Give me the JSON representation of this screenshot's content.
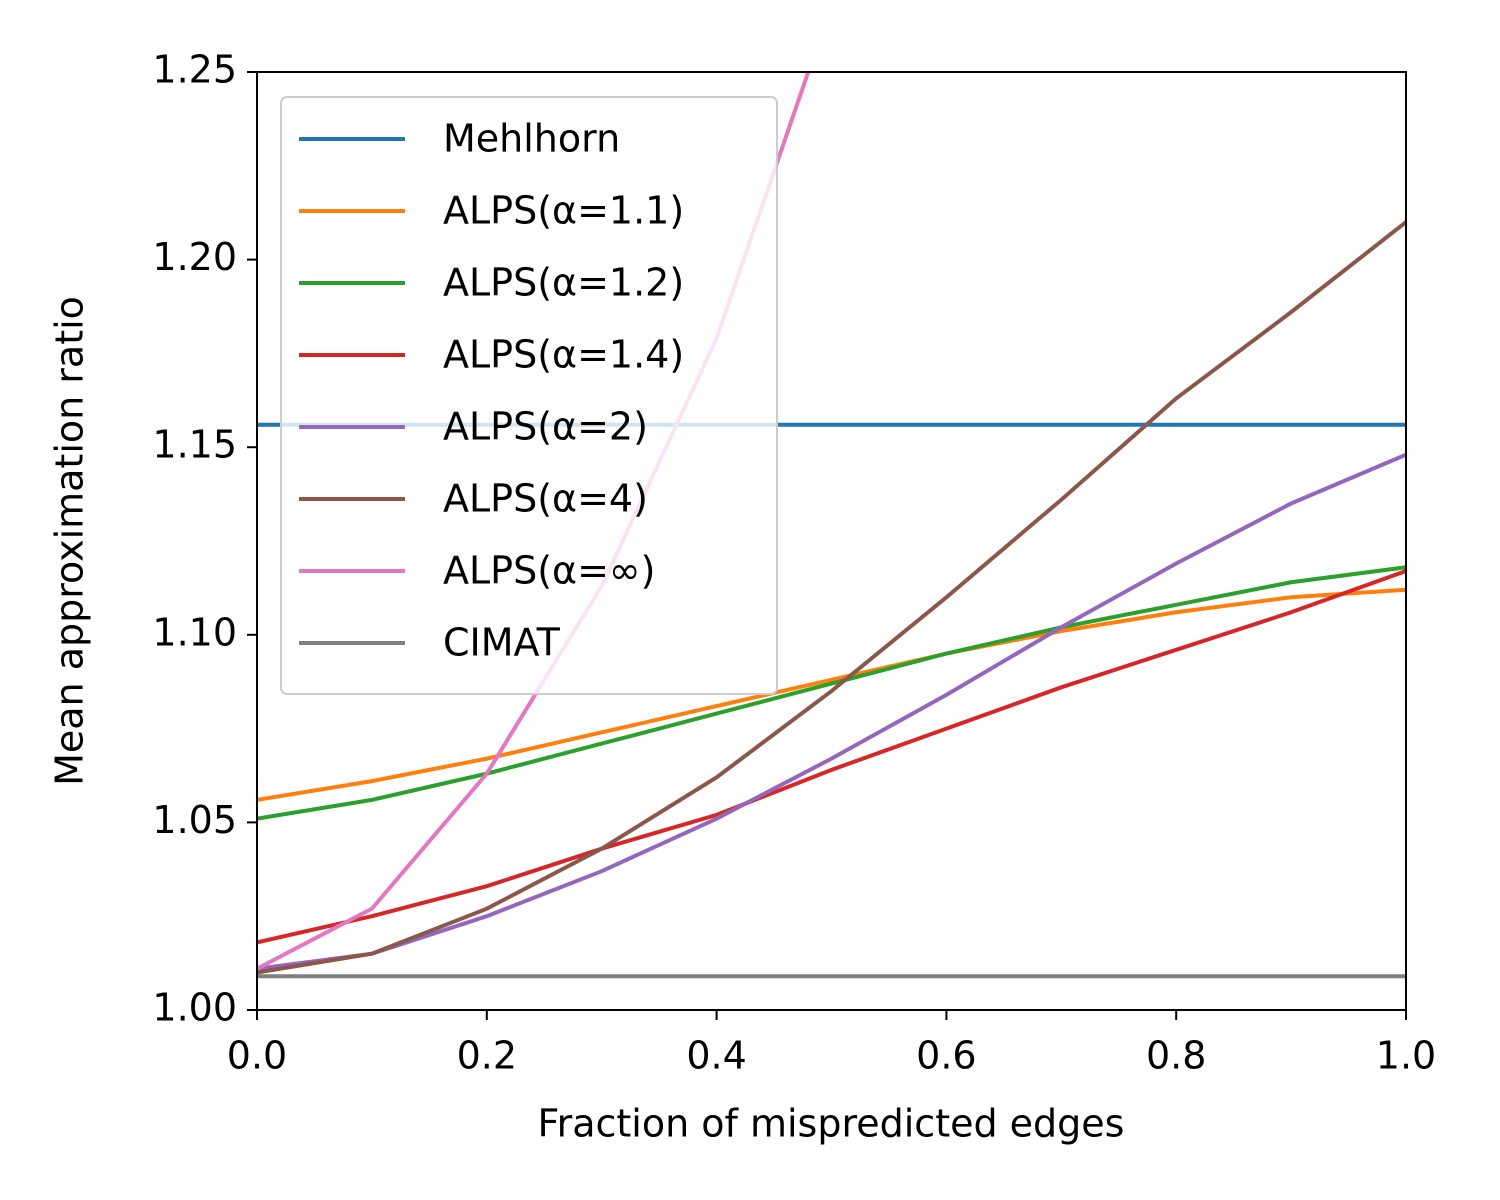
{
  "chart_data": {
    "type": "line",
    "xlabel": "Fraction of mispredicted edges",
    "ylabel": "Mean approximation ratio",
    "x": [
      0,
      0.1,
      0.2,
      0.3,
      0.4,
      0.5,
      0.6,
      0.7,
      0.8,
      0.9,
      1
    ],
    "series": [
      {
        "name": "Mehlhorn",
        "color": "#1f77b4",
        "values": [
          1.156,
          1.156,
          1.156,
          1.156,
          1.156,
          1.156,
          1.156,
          1.156,
          1.156,
          1.156,
          1.156
        ]
      },
      {
        "name": "ALPS(α=1.1)",
        "color": "#ff7f0e",
        "values": [
          1.056,
          1.061,
          1.067,
          1.074,
          1.081,
          1.088,
          1.095,
          1.101,
          1.106,
          1.11,
          1.112
        ]
      },
      {
        "name": "ALPS(α=1.2)",
        "color": "#2ca02c",
        "values": [
          1.051,
          1.056,
          1.063,
          1.071,
          1.079,
          1.087,
          1.095,
          1.102,
          1.108,
          1.114,
          1.118
        ]
      },
      {
        "name": "ALPS(α=1.4)",
        "color": "#d62728",
        "values": [
          1.018,
          1.025,
          1.033,
          1.043,
          1.052,
          1.064,
          1.075,
          1.086,
          1.096,
          1.106,
          1.117
        ]
      },
      {
        "name": "ALPS(α=2)",
        "color": "#9467bd",
        "values": [
          1.011,
          1.015,
          1.025,
          1.037,
          1.051,
          1.067,
          1.084,
          1.102,
          1.119,
          1.135,
          1.148
        ]
      },
      {
        "name": "ALPS(α=4)",
        "color": "#8c564b",
        "values": [
          1.01,
          1.015,
          1.027,
          1.043,
          1.062,
          1.085,
          1.11,
          1.136,
          1.163,
          1.186,
          1.21
        ]
      },
      {
        "name": "ALPS(α=∞)",
        "color": "#e377c2",
        "values": [
          1.011,
          1.027,
          1.063,
          1.113,
          1.179,
          1.268,
          null,
          null,
          null,
          null,
          null
        ]
      },
      {
        "name": "CIMAT",
        "color": "#7f7f7f",
        "values": [
          1.009,
          1.009,
          1.009,
          1.009,
          1.009,
          1.009,
          1.009,
          1.009,
          1.009,
          1.009,
          1.009
        ]
      }
    ],
    "xlim": [
      0,
      1
    ],
    "ylim": [
      1,
      1.25
    ],
    "xticks": [
      {
        "value": 0,
        "label": "0.0"
      },
      0.2,
      0.4,
      0.6,
      0.8,
      {
        "value": 1,
        "label": "1.0"
      }
    ],
    "yticks": [
      {
        "value": 1,
        "label": "1.00"
      },
      1.05,
      {
        "value": 1.1,
        "label": "1.10"
      },
      1.15,
      {
        "value": 1.2,
        "label": "1.20"
      },
      1.25
    ],
    "grid": false,
    "legend": "upper left"
  }
}
